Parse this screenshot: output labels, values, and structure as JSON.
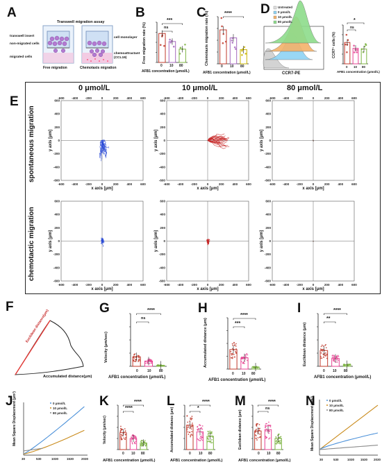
{
  "panels": {
    "A": {
      "label": "A",
      "title": "Transwell migration assay",
      "labels": [
        "transwell insert",
        "non-migrated cells",
        "migrated cells",
        "cell monolayer",
        "chemoattractant",
        "(CCL19)"
      ],
      "captions": [
        "Free migration",
        "Chemotaxis migration"
      ]
    },
    "B": {
      "label": "B",
      "ylabel": "Free migration rate (%)",
      "xlabel": "AFB1 concentration (μmol/L)",
      "ticks_x": [
        "0",
        "10",
        "80"
      ],
      "ticks_y": [
        "0",
        "10",
        "20",
        "30",
        "40",
        "50"
      ],
      "sig": [
        "***",
        "ns"
      ]
    },
    "C": {
      "label": "C",
      "ylabel": "Chemotaxis migration rate (%)",
      "xlabel": "AFB1 concentration (μmol/L)",
      "ticks_x": [
        "0",
        "10",
        "80"
      ],
      "ticks_y": [
        "0",
        "20",
        "40",
        "60",
        "80",
        "100"
      ],
      "sig": [
        "****"
      ]
    },
    "D": {
      "label": "D",
      "legend": [
        "Untreated",
        "0 μmol/L",
        "10 μmol/L",
        "80 μmol/L"
      ],
      "xlabel": "CCR7-PE",
      "ylabel2": "CCR7⁺ cells (%)",
      "xlabel2": "AFB1 concentration (μmol/L)",
      "ticks_x": [
        "0",
        "10",
        "80"
      ],
      "ticks_y": [
        "40",
        "50",
        "60",
        "70",
        "80"
      ],
      "sig": [
        "*",
        "ns"
      ]
    },
    "E": {
      "label": "E",
      "columns": [
        "0 μmol/L",
        "10 μmol/L",
        "80 μmol/L"
      ],
      "rows": [
        "spontaneous migration",
        "chemotactic migration"
      ],
      "x_axis": "x axis [μm]",
      "y_axis": "y axis [μm]",
      "ticks": [
        "-600",
        "-400",
        "-200",
        "0",
        "200",
        "400",
        "600"
      ]
    },
    "F": {
      "label": "F",
      "labels": [
        "Euclidean distance(μm)",
        "Accumulated distance(μm)"
      ]
    },
    "G": {
      "label": "G",
      "ylabel": "Velocity (μm/sec)",
      "xlabel": "AFB1 concentration (μmol/L)",
      "ticks_x": [
        "0",
        "10",
        "80"
      ],
      "ticks_y": [
        "0.0",
        "0.1",
        "0.2",
        "0.3",
        "0.4"
      ],
      "sig": [
        "****",
        "ns"
      ]
    },
    "H": {
      "label": "H",
      "ylabel": "Accumulated distance (μm)",
      "xlabel": "AFB1 concentration (μmol/L)",
      "ticks_x": [
        "0",
        "10",
        "80"
      ],
      "ticks_y": [
        "0",
        "100",
        "200",
        "300",
        "400",
        "500"
      ],
      "sig": [
        "****",
        "***"
      ]
    },
    "I": {
      "label": "I",
      "ylabel": "Euclidean distance (μm)",
      "xlabel": "AFB1 concentration (μmol/L)",
      "ticks_x": [
        "0",
        "10",
        "80"
      ],
      "ticks_y": [
        "0",
        "200",
        "400",
        "600",
        "800"
      ],
      "sig": [
        "****",
        "**"
      ]
    },
    "J": {
      "label": "J",
      "ylabel": "Mean Square Displacement (μm²)",
      "legend": [
        "0 μmol/L",
        "10 μmol/L",
        "80 μmol/L"
      ],
      "ticks_x": [
        "30",
        "530",
        "1030",
        "1530",
        "2030"
      ],
      "ticks_y": [
        "0",
        "2000",
        "4000",
        "6000",
        "8000",
        "10000"
      ]
    },
    "K": {
      "label": "K",
      "ylabel": "Velocity (μm/sec)",
      "xlabel": "AFB1 concentration (μmol/L)",
      "ticks_x": [
        "0",
        "10",
        "80"
      ],
      "ticks_y": [
        "0.0",
        "0.1",
        "0.2",
        "0.3",
        "0.4"
      ],
      "sig": [
        "****",
        "****"
      ]
    },
    "L": {
      "label": "L",
      "ylabel": "Accumulated distance (μm)",
      "xlabel": "AFB1 concentration (μmol/L)",
      "ticks_x": [
        "0",
        "10",
        "80"
      ],
      "ticks_y": [
        "0",
        "100",
        "200",
        "300",
        "400",
        "500"
      ],
      "sig": [
        "****",
        "*"
      ]
    },
    "M": {
      "label": "M",
      "ylabel": "Euclidean distance (μm)",
      "xlabel": "AFB1 concentration (μmol/L)",
      "ticks_x": [
        "0",
        "10",
        "80"
      ],
      "ticks_y": [
        "0",
        "100",
        "200",
        "300",
        "400"
      ],
      "sig": [
        "****",
        "ns"
      ]
    },
    "N": {
      "label": "N",
      "ylabel": "Mean Square Displacement (μm²)",
      "legend": [
        "0 μmol/L",
        "10 μmol/L",
        "80 μmol/L"
      ],
      "ticks_x": [
        "30",
        "530",
        "1030",
        "1530",
        "2030"
      ],
      "ticks_y": [
        "-1000",
        "0",
        "1000",
        "2000",
        "3000",
        "4000",
        "5000",
        "6000",
        "7000",
        "8000"
      ]
    }
  },
  "colors": {
    "ctrl": "#c0392b",
    "c10": "#e84393",
    "c80": "#7cb342",
    "blue": "#2b4bd6",
    "red": "#c62828",
    "brown": "#5d4037",
    "msd0": "#4a90d9",
    "msd10": "#c98a1a",
    "msd80": "#8a8a8a"
  }
}
